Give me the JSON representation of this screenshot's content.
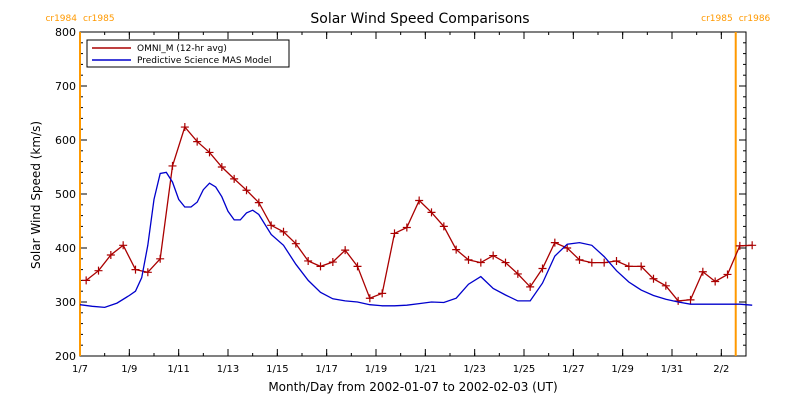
{
  "chart_data": {
    "type": "line",
    "title": "Solar Wind Speed Comparisons",
    "xlabel": "Month/Day from 2002-01-07 to 2002-02-03 (UT)",
    "ylabel": "Solar Wind Speed (km/s)",
    "xlim": [
      "2002-01-07",
      "2002-02-03"
    ],
    "ylim": [
      200,
      800
    ],
    "y_ticks": [
      200,
      300,
      400,
      500,
      600,
      700,
      800
    ],
    "x_ticks": [
      {
        "date": "2002-01-07",
        "label": "1/7"
      },
      {
        "date": "2002-01-09",
        "label": "1/9"
      },
      {
        "date": "2002-01-11",
        "label": "1/11"
      },
      {
        "date": "2002-01-13",
        "label": "1/13"
      },
      {
        "date": "2002-01-15",
        "label": "1/15"
      },
      {
        "date": "2002-01-17",
        "label": "1/17"
      },
      {
        "date": "2002-01-19",
        "label": "1/19"
      },
      {
        "date": "2002-01-21",
        "label": "1/21"
      },
      {
        "date": "2002-01-23",
        "label": "1/23"
      },
      {
        "date": "2002-01-25",
        "label": "1/25"
      },
      {
        "date": "2002-01-27",
        "label": "1/27"
      },
      {
        "date": "2002-01-29",
        "label": "1/29"
      },
      {
        "date": "2002-01-31",
        "label": "1/31"
      },
      {
        "date": "2002-02-02",
        "label": "2/2"
      }
    ],
    "legend_position": "top-left",
    "carrington_markers": [
      {
        "date": "2002-01-07",
        "left_label": "cr1984",
        "right_label": "cr1985",
        "color": "#ff9900"
      },
      {
        "date": "2002-02-02 14:00",
        "left_label": "cr1985",
        "right_label": "cr1986",
        "color": "#ff9900"
      }
    ],
    "series": [
      {
        "name": "OMNI_M (12-hr avg)",
        "color": "#aa0000",
        "markers": "plus",
        "points": [
          [
            "2002-01-07 06:00",
            340
          ],
          [
            "2002-01-07 18:00",
            358
          ],
          [
            "2002-01-08 06:00",
            387
          ],
          [
            "2002-01-08 18:00",
            405
          ],
          [
            "2002-01-09 06:00",
            360
          ],
          [
            "2002-01-09 18:00",
            355
          ],
          [
            "2002-01-10 06:00",
            380
          ],
          [
            "2002-01-10 18:00",
            552
          ],
          [
            "2002-01-11 06:00",
            624
          ],
          [
            "2002-01-11 18:00",
            597
          ],
          [
            "2002-01-12 06:00",
            577
          ],
          [
            "2002-01-12 18:00",
            550
          ],
          [
            "2002-01-13 06:00",
            528
          ],
          [
            "2002-01-13 18:00",
            507
          ],
          [
            "2002-01-14 06:00",
            484
          ],
          [
            "2002-01-14 18:00",
            442
          ],
          [
            "2002-01-15 06:00",
            430
          ],
          [
            "2002-01-15 18:00",
            408
          ],
          [
            "2002-01-16 06:00",
            376
          ],
          [
            "2002-01-16 18:00",
            366
          ],
          [
            "2002-01-17 06:00",
            374
          ],
          [
            "2002-01-17 18:00",
            396
          ],
          [
            "2002-01-18 06:00",
            366
          ],
          [
            "2002-01-18 18:00",
            307
          ],
          [
            "2002-01-19 06:00",
            316
          ],
          [
            "2002-01-19 18:00",
            427
          ],
          [
            "2002-01-20 06:00",
            438
          ],
          [
            "2002-01-20 18:00",
            488
          ],
          [
            "2002-01-21 06:00",
            466
          ],
          [
            "2002-01-21 18:00",
            440
          ],
          [
            "2002-01-22 06:00",
            397
          ],
          [
            "2002-01-22 18:00",
            378
          ],
          [
            "2002-01-23 06:00",
            373
          ],
          [
            "2002-01-23 18:00",
            386
          ],
          [
            "2002-01-24 06:00",
            373
          ],
          [
            "2002-01-24 18:00",
            352
          ],
          [
            "2002-01-25 06:00",
            328
          ],
          [
            "2002-01-25 18:00",
            362
          ],
          [
            "2002-01-26 06:00",
            410
          ],
          [
            "2002-01-26 18:00",
            400
          ],
          [
            "2002-01-27 06:00",
            378
          ],
          [
            "2002-01-27 18:00",
            373
          ],
          [
            "2002-01-28 06:00",
            373
          ],
          [
            "2002-01-28 18:00",
            376
          ],
          [
            "2002-01-29 06:00",
            366
          ],
          [
            "2002-01-29 18:00",
            366
          ],
          [
            "2002-01-30 06:00",
            343
          ],
          [
            "2002-01-30 18:00",
            330
          ],
          [
            "2002-01-31 06:00",
            302
          ],
          [
            "2002-01-31 18:00",
            304
          ],
          [
            "2002-02-01 06:00",
            356
          ],
          [
            "2002-02-01 18:00",
            338
          ],
          [
            "2002-02-02 06:00",
            351
          ],
          [
            "2002-02-02 18:00",
            404
          ],
          [
            "2002-02-03 06:00",
            405
          ]
        ]
      },
      {
        "name": "Predictive Science MAS Model",
        "color": "#0000cc",
        "markers": "none",
        "points": [
          [
            "2002-01-07 00:00",
            295
          ],
          [
            "2002-01-07 12:00",
            292
          ],
          [
            "2002-01-08 00:00",
            290
          ],
          [
            "2002-01-08 12:00",
            298
          ],
          [
            "2002-01-09 00:00",
            312
          ],
          [
            "2002-01-09 06:00",
            320
          ],
          [
            "2002-01-09 12:00",
            345
          ],
          [
            "2002-01-09 18:00",
            405
          ],
          [
            "2002-01-10 00:00",
            490
          ],
          [
            "2002-01-10 06:00",
            538
          ],
          [
            "2002-01-10 12:00",
            540
          ],
          [
            "2002-01-10 18:00",
            522
          ],
          [
            "2002-01-11 00:00",
            490
          ],
          [
            "2002-01-11 06:00",
            476
          ],
          [
            "2002-01-11 12:00",
            476
          ],
          [
            "2002-01-11 18:00",
            485
          ],
          [
            "2002-01-12 00:00",
            508
          ],
          [
            "2002-01-12 06:00",
            520
          ],
          [
            "2002-01-12 12:00",
            513
          ],
          [
            "2002-01-12 18:00",
            495
          ],
          [
            "2002-01-13 00:00",
            468
          ],
          [
            "2002-01-13 06:00",
            452
          ],
          [
            "2002-01-13 12:00",
            452
          ],
          [
            "2002-01-13 18:00",
            465
          ],
          [
            "2002-01-14 00:00",
            470
          ],
          [
            "2002-01-14 06:00",
            462
          ],
          [
            "2002-01-14 18:00",
            425
          ],
          [
            "2002-01-15 06:00",
            405
          ],
          [
            "2002-01-15 18:00",
            370
          ],
          [
            "2002-01-16 06:00",
            340
          ],
          [
            "2002-01-16 18:00",
            318
          ],
          [
            "2002-01-17 06:00",
            306
          ],
          [
            "2002-01-17 18:00",
            302
          ],
          [
            "2002-01-18 06:00",
            300
          ],
          [
            "2002-01-18 18:00",
            295
          ],
          [
            "2002-01-19 06:00",
            293
          ],
          [
            "2002-01-19 18:00",
            293
          ],
          [
            "2002-01-20 06:00",
            294
          ],
          [
            "2002-01-20 18:00",
            297
          ],
          [
            "2002-01-21 06:00",
            300
          ],
          [
            "2002-01-21 18:00",
            299
          ],
          [
            "2002-01-22 06:00",
            307
          ],
          [
            "2002-01-22 18:00",
            333
          ],
          [
            "2002-01-23 06:00",
            347
          ],
          [
            "2002-01-23 18:00",
            325
          ],
          [
            "2002-01-24 06:00",
            313
          ],
          [
            "2002-01-24 18:00",
            302
          ],
          [
            "2002-01-25 06:00",
            302
          ],
          [
            "2002-01-25 18:00",
            335
          ],
          [
            "2002-01-26 06:00",
            385
          ],
          [
            "2002-01-26 18:00",
            407
          ],
          [
            "2002-01-27 06:00",
            410
          ],
          [
            "2002-01-27 18:00",
            405
          ],
          [
            "2002-01-28 06:00",
            384
          ],
          [
            "2002-01-28 18:00",
            358
          ],
          [
            "2002-01-29 06:00",
            337
          ],
          [
            "2002-01-29 18:00",
            322
          ],
          [
            "2002-01-30 06:00",
            312
          ],
          [
            "2002-01-30 18:00",
            305
          ],
          [
            "2002-01-31 06:00",
            300
          ],
          [
            "2002-01-31 18:00",
            296
          ],
          [
            "2002-02-01 06:00",
            296
          ],
          [
            "2002-02-01 18:00",
            296
          ],
          [
            "2002-02-02 06:00",
            296
          ],
          [
            "2002-02-02 18:00",
            296
          ],
          [
            "2002-02-03 06:00",
            294
          ]
        ]
      }
    ]
  }
}
